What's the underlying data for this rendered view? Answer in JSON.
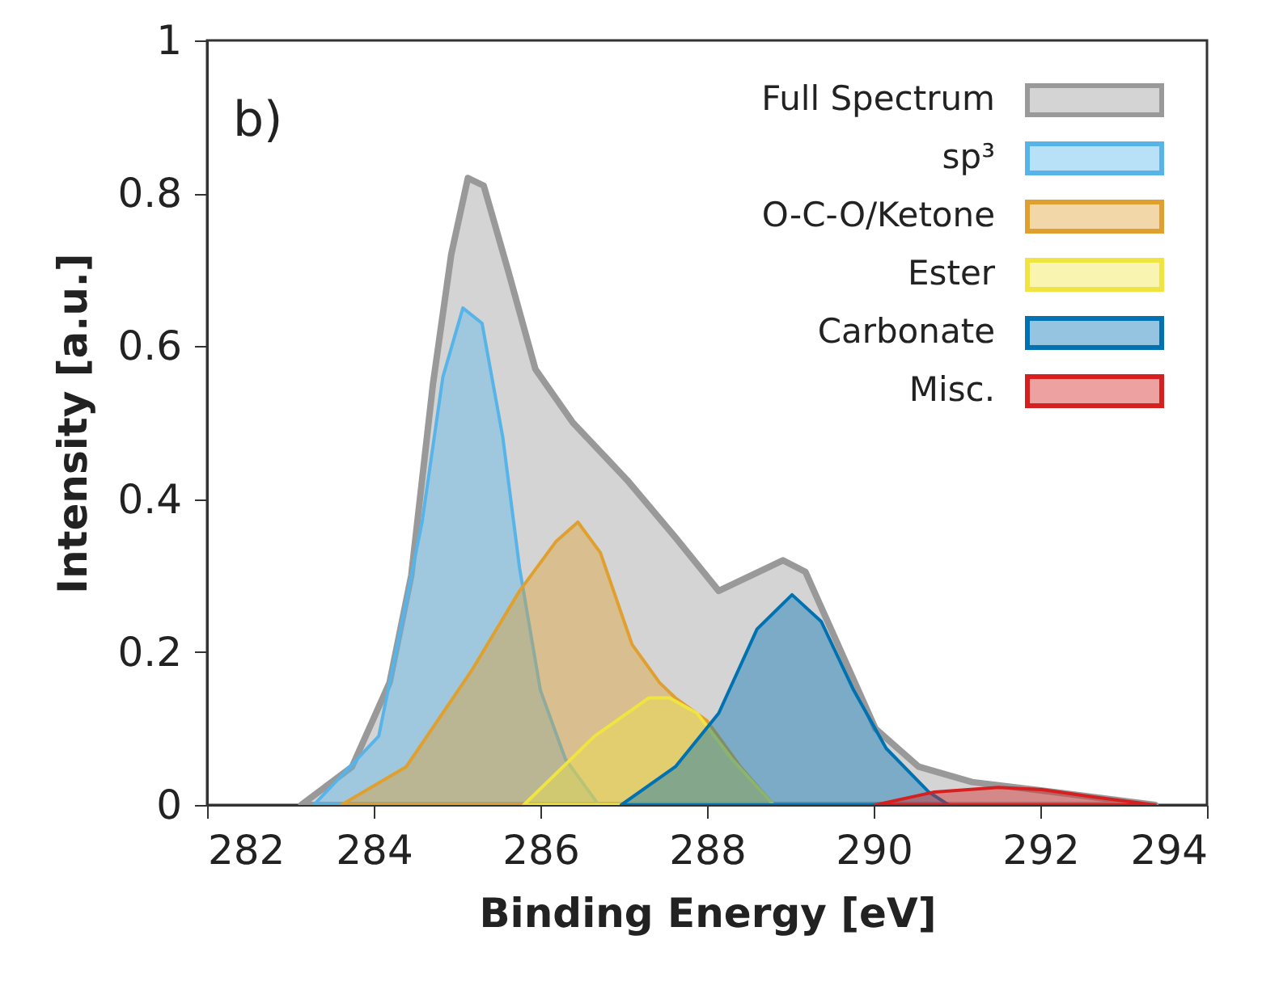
{
  "chart_data": {
    "type": "area",
    "xlabel": "Binding Energy [eV]",
    "ylabel": "Intensity [a.u.]",
    "annotations": [
      "b)"
    ],
    "xlim": [
      282,
      294
    ],
    "xticks": [
      282,
      284,
      286,
      288,
      290,
      292,
      294
    ],
    "ylim": [
      0,
      1
    ],
    "yticks": [
      0,
      0.2,
      0.4,
      0.6,
      0.8,
      1
    ],
    "grid": false,
    "legend": "top right",
    "series": [
      {
        "name": "Full Spectrum",
        "color": "#999999",
        "x": [
          283.13,
          283.74,
          284.19,
          284.45,
          284.71,
          284.93,
          285.13,
          285.32,
          285.61,
          285.94,
          286.39,
          287.04,
          287.62,
          288.14,
          288.91,
          289.18,
          289.57,
          290.02,
          290.54,
          291.18,
          292.16,
          293.38
        ],
        "values": [
          0,
          0.05,
          0.16,
          0.3,
          0.55,
          0.72,
          0.82,
          0.81,
          0.7,
          0.57,
          0.5,
          0.425,
          0.35,
          0.28,
          0.32,
          0.305,
          0.21,
          0.1,
          0.05,
          0.03,
          0.017,
          0
        ]
      },
      {
        "name": "sp³",
        "color": "#56b4e9",
        "x": [
          283.28,
          284.06,
          284.58,
          284.83,
          285.07,
          285.3,
          285.55,
          285.75,
          286.0,
          286.3,
          286.7
        ],
        "values": [
          0,
          0.09,
          0.37,
          0.56,
          0.65,
          0.63,
          0.48,
          0.31,
          0.15,
          0.06,
          0
        ]
      },
      {
        "name": "O-C-O/Ketone",
        "color": "#e0a030",
        "x": [
          283.61,
          284.39,
          285.17,
          285.75,
          286.19,
          286.45,
          286.72,
          287.1,
          287.43,
          287.62,
          288.0,
          288.4,
          288.8
        ],
        "values": [
          0,
          0.05,
          0.175,
          0.28,
          0.345,
          0.37,
          0.33,
          0.21,
          0.16,
          0.14,
          0.11,
          0.05,
          0
        ]
      },
      {
        "name": "Ester",
        "color": "#f0e442",
        "x": [
          285.8,
          286.65,
          287.3,
          287.55,
          287.88,
          288.3,
          288.8
        ],
        "values": [
          0,
          0.09,
          0.14,
          0.14,
          0.12,
          0.06,
          0
        ]
      },
      {
        "name": "Carbonate",
        "color": "#0072b2",
        "x": [
          286.97,
          287.62,
          288.14,
          288.6,
          289.02,
          289.37,
          289.76,
          290.15,
          290.66,
          290.9
        ],
        "values": [
          0,
          0.05,
          0.12,
          0.23,
          0.275,
          0.24,
          0.15,
          0.074,
          0.017,
          0
        ]
      },
      {
        "name": "Misc.",
        "color": "#d62020",
        "x": [
          290.02,
          290.73,
          291.5,
          292.02,
          292.67,
          293.38
        ],
        "values": [
          0,
          0.017,
          0.023,
          0.02,
          0.01,
          0
        ]
      }
    ]
  }
}
